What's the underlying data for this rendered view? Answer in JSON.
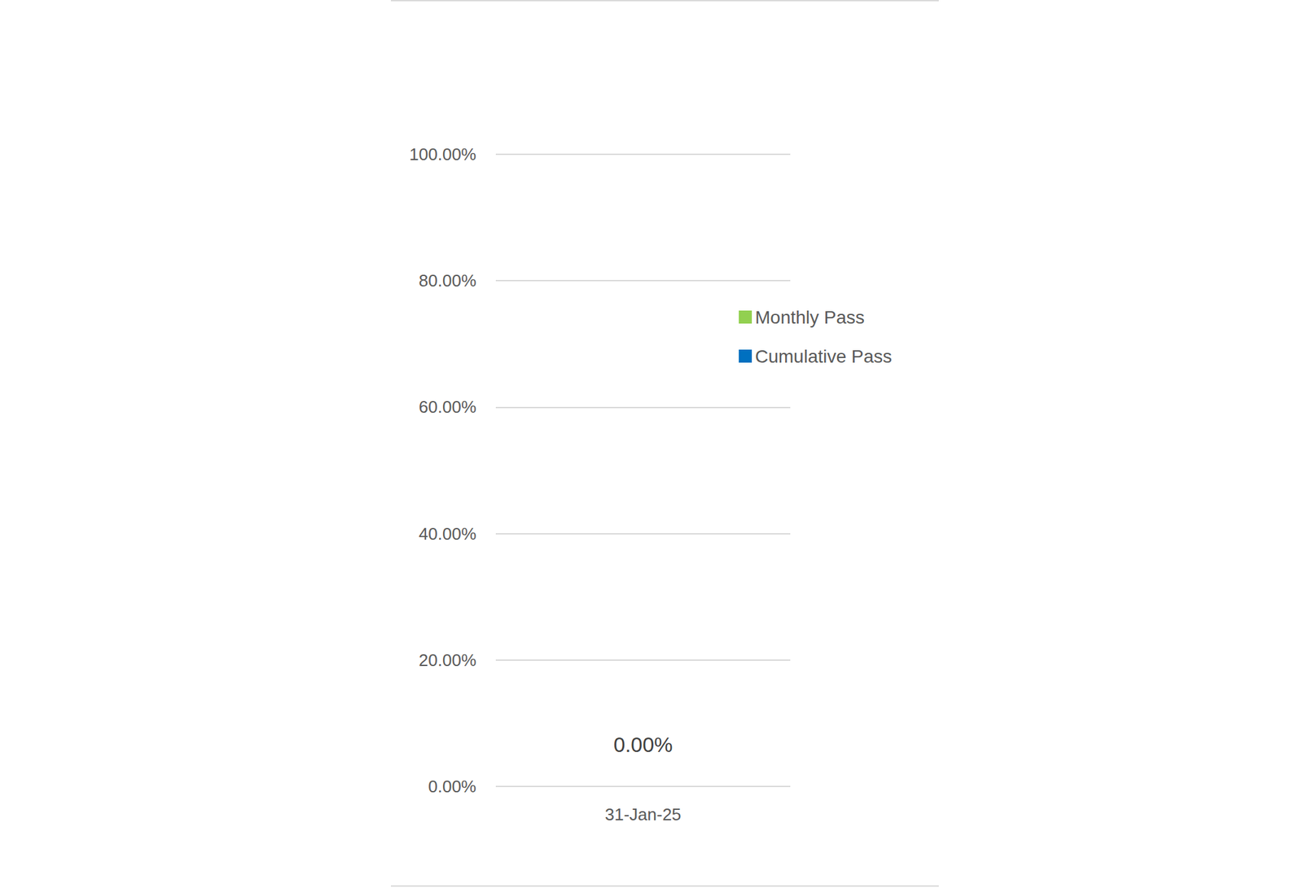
{
  "chart_data": {
    "type": "bar",
    "categories": [
      "31-Jan-25"
    ],
    "series": [
      {
        "name": "Monthly Pass",
        "color": "#92d050",
        "values": [
          0
        ]
      },
      {
        "name": "Cumulative Pass",
        "color": "#0070c0",
        "values": [
          0
        ],
        "value_labels": [
          "0.00%"
        ]
      }
    ],
    "ylim": [
      0,
      100
    ],
    "yticks": [
      {
        "value": 0,
        "label": "0.00%"
      },
      {
        "value": 20,
        "label": "20.00%"
      },
      {
        "value": 40,
        "label": "40.00%"
      },
      {
        "value": 60,
        "label": "60.00%"
      },
      {
        "value": 80,
        "label": "80.00%"
      },
      {
        "value": 100,
        "label": "100.00%"
      }
    ],
    "grid": true,
    "legend": "right",
    "data_labels": true
  }
}
